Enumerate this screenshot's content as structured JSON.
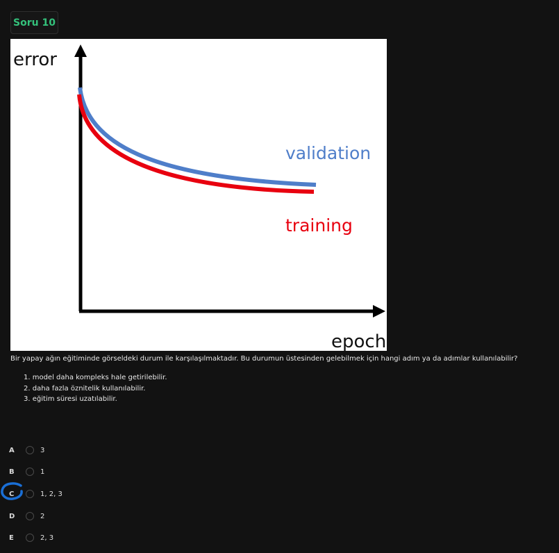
{
  "header": {
    "badge": "Soru 10"
  },
  "figure": {
    "y_label": "error",
    "x_label": "epoch",
    "curves": [
      {
        "name": "validation",
        "color": "#4f7ec9"
      },
      {
        "name": "training",
        "color": "#e8000f"
      }
    ]
  },
  "question": {
    "text": "Bir yapay ağın eğitiminde görseldeki durum ile karşılaşılmaktadır. Bu durumun üstesinden gelebilmek için hangi adım ya da adımlar kullanılabilir?",
    "items": [
      "1. model daha kompleks hale getirilebilir.",
      "2. daha fazla öznitelik kullanılabilir.",
      "3. eğitim süresi uzatılabilir."
    ]
  },
  "answers": [
    {
      "letter": "A",
      "value": "3"
    },
    {
      "letter": "B",
      "value": "1"
    },
    {
      "letter": "C",
      "value": "1, 2, 3"
    },
    {
      "letter": "D",
      "value": "2"
    },
    {
      "letter": "E",
      "value": "2, 3"
    }
  ],
  "annotation_color": "#1a6fd6"
}
